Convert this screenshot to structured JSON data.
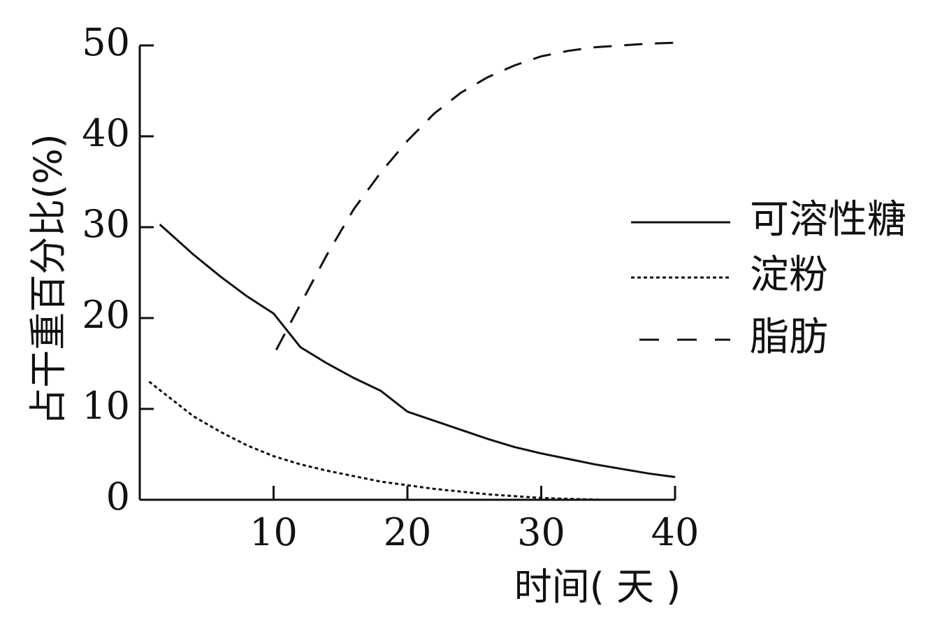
{
  "chart_data": {
    "type": "line",
    "title": "",
    "xlabel": "时间( 天 )",
    "ylabel": "占干重百分比(%)",
    "xlim": [
      0,
      40
    ],
    "ylim": [
      0,
      50
    ],
    "xticks": [
      10,
      20,
      30,
      40
    ],
    "yticks": [
      0,
      10,
      20,
      30,
      40,
      50
    ],
    "grid": false,
    "legend_position": "right",
    "series": [
      {
        "name": "可溶性糖",
        "style": "solid",
        "x": [
          1.5,
          4,
          6,
          8,
          10,
          12,
          14,
          16,
          18,
          20,
          22,
          24,
          26,
          28,
          30,
          32,
          34,
          36,
          38,
          40
        ],
        "y": [
          30.3,
          27,
          24.6,
          22.4,
          20.5,
          16.8,
          15,
          13.4,
          12,
          9.7,
          8.7,
          7.7,
          6.7,
          5.8,
          5.1,
          4.5,
          3.9,
          3.4,
          2.9,
          2.5
        ]
      },
      {
        "name": "淀粉",
        "style": "dotted",
        "x": [
          0.7,
          2,
          4,
          6,
          8,
          10,
          12,
          14,
          16,
          18,
          20,
          22,
          24,
          26,
          28,
          30,
          32,
          34.5
        ],
        "y": [
          13,
          11.5,
          9.2,
          7.5,
          6,
          4.8,
          3.9,
          3.2,
          2.6,
          2,
          1.6,
          1.2,
          0.9,
          0.6,
          0.4,
          0.2,
          0.1,
          0
        ]
      },
      {
        "name": "脂肪",
        "style": "dashed",
        "x": [
          10.2,
          12,
          14,
          16,
          18,
          20,
          22,
          24,
          26,
          28,
          30,
          32,
          34,
          36,
          38,
          40
        ],
        "y": [
          16.5,
          21.5,
          27,
          32,
          36,
          39.5,
          42.5,
          44.8,
          46.5,
          47.8,
          48.8,
          49.4,
          49.8,
          50,
          50.2,
          50.3
        ]
      }
    ]
  }
}
